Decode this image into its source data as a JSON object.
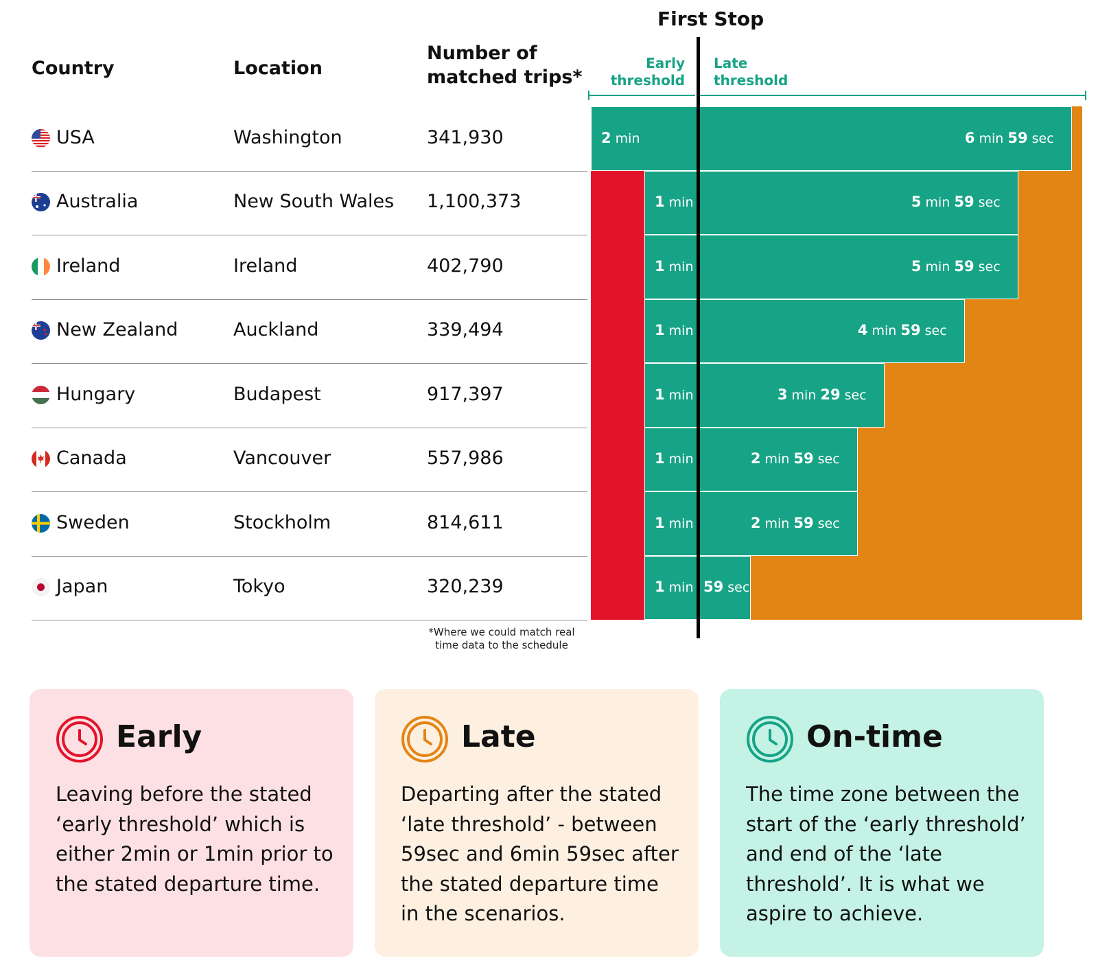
{
  "chart_data": {
    "type": "bar",
    "title": "First Stop",
    "threshold_labels": {
      "early": "Early threshold",
      "late": "Late threshold"
    },
    "columns": {
      "country": "Country",
      "location": "Location",
      "trips": "Number of matched trips*"
    },
    "footnote": "*Where we could match real time data to the schedule",
    "units": {
      "min": "min",
      "sec": "sec"
    },
    "scale_max_seconds": 540,
    "rows": [
      {
        "country": "USA",
        "location": "Washington",
        "trips": "341,930",
        "early_seconds": 120,
        "early_min": "2",
        "late_seconds": 419,
        "late_min": "6",
        "late_sec": "59"
      },
      {
        "country": "Australia",
        "location": "New South Wales",
        "trips": "1,100,373",
        "early_seconds": 60,
        "early_min": "1",
        "late_seconds": 359,
        "late_min": "5",
        "late_sec": "59"
      },
      {
        "country": "Ireland",
        "location": "Ireland",
        "trips": "402,790",
        "early_seconds": 60,
        "early_min": "1",
        "late_seconds": 359,
        "late_min": "5",
        "late_sec": "59"
      },
      {
        "country": "New Zealand",
        "location": "Auckland",
        "trips": "339,494",
        "early_seconds": 60,
        "early_min": "1",
        "late_seconds": 299,
        "late_min": "4",
        "late_sec": "59"
      },
      {
        "country": "Hungary",
        "location": "Budapest",
        "trips": "917,397",
        "early_seconds": 60,
        "early_min": "1",
        "late_seconds": 209,
        "late_min": "3",
        "late_sec": "29"
      },
      {
        "country": "Canada",
        "location": "Vancouver",
        "trips": "557,986",
        "early_seconds": 60,
        "early_min": "1",
        "late_seconds": 179,
        "late_min": "2",
        "late_sec": "59"
      },
      {
        "country": "Sweden",
        "location": "Stockholm",
        "trips": "814,611",
        "early_seconds": 60,
        "early_min": "1",
        "late_seconds": 179,
        "late_min": "2",
        "late_sec": "59"
      },
      {
        "country": "Japan",
        "location": "Tokyo",
        "trips": "320,239",
        "early_seconds": 60,
        "early_min": "1",
        "late_seconds": 59,
        "late_min": "",
        "late_sec": "59"
      }
    ],
    "colors": {
      "early": "#e3132a",
      "ontime": "#17a386",
      "late": "#e38515",
      "threshold_line": "#000000"
    }
  },
  "legend_cards": [
    {
      "title": "Early",
      "text": "Leaving before the stated ‘early threshold’ which is either 2min or 1min prior to the stated departure time.",
      "color": "#e3132a",
      "bg": "#fde0e3",
      "icon": "clock-icon"
    },
    {
      "title": "Late",
      "text": "Departing after the stated ‘late threshold’ - between 59sec and 6min 59sec after the stated departure time in the scenarios.",
      "color": "#e38515",
      "bg": "#fdf0e1",
      "icon": "clock-icon"
    },
    {
      "title": "On-time",
      "text": "The time zone between the start of the ‘early threshold’ and end of the ‘late threshold’. It is what we aspire to achieve.",
      "color": "#17a386",
      "bg": "#c4f3e6",
      "icon": "clock-icon"
    }
  ]
}
